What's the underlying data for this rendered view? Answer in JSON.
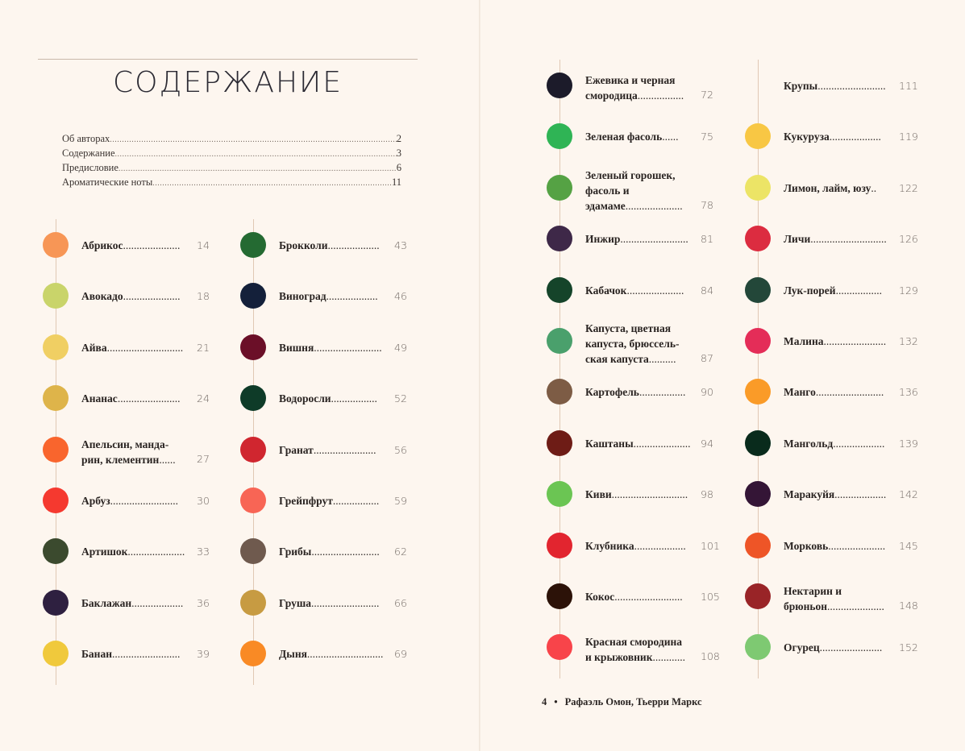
{
  "title": "СОДЕРЖАНИЕ",
  "front_matter": [
    {
      "label": "Об авторах",
      "page": "2"
    },
    {
      "label": "Содержание",
      "page": "3"
    },
    {
      "label": "Предисловие",
      "page": "6"
    },
    {
      "label": "Ароматические ноты",
      "page": "11"
    }
  ],
  "columns": [
    {
      "entries": [
        {
          "name": "Абрикос",
          "page": "14",
          "color": "#f79656"
        },
        {
          "name": "Авокадо",
          "page": "18",
          "color": "#c9d46a"
        },
        {
          "name": "Айва",
          "page": "21",
          "color": "#f0cf63"
        },
        {
          "name": "Ананас",
          "page": "24",
          "color": "#deb44a"
        },
        {
          "name": "Апельсин, манда-рин, клементин",
          "lines": [
            "Апельсин, манда-",
            "рин, клементин"
          ],
          "page": "27",
          "color": "#f9652d"
        },
        {
          "name": "Арбуз",
          "page": "30",
          "color": "#f5392f"
        },
        {
          "name": "Артишок",
          "page": "33",
          "color": "#3b4a2e"
        },
        {
          "name": "Баклажан",
          "page": "36",
          "color": "#2e2040"
        },
        {
          "name": "Банан",
          "page": "39",
          "color": "#f0c93c"
        }
      ]
    },
    {
      "entries": [
        {
          "name": "Брокколи",
          "page": "43",
          "color": "#246a32"
        },
        {
          "name": "Виноград",
          "page": "46",
          "color": "#14203a"
        },
        {
          "name": "Вишня",
          "page": "49",
          "color": "#6b0f28"
        },
        {
          "name": "Водоросли",
          "page": "52",
          "color": "#0e3b28"
        },
        {
          "name": "Гранат",
          "page": "56",
          "color": "#d0262f"
        },
        {
          "name": "Грейпфрут",
          "page": "59",
          "color": "#f86555"
        },
        {
          "name": "Грибы",
          "page": "62",
          "color": "#6f5a4e"
        },
        {
          "name": "Груша",
          "page": "66",
          "color": "#c79b42"
        },
        {
          "name": "Дыня",
          "page": "69",
          "color": "#f98a25"
        }
      ]
    },
    {
      "entries": [
        {
          "name": "Ежевика и черная смородица",
          "lines": [
            "Ежевика и черная",
            "смородица"
          ],
          "page": "72",
          "color": "#1c1b2a"
        },
        {
          "name": "Зеленая фасоль",
          "page": "75",
          "color": "#2fb455"
        },
        {
          "name": "Зеленый горошек, фасоль и эдамаме",
          "lines": [
            "Зеленый горошек,",
            "фасоль и",
            "эдамаме"
          ],
          "page": "78",
          "color": "#55a244"
        },
        {
          "name": "Инжир",
          "page": "81",
          "color": "#3e2848"
        },
        {
          "name": "Кабачок",
          "page": "84",
          "color": "#15442a"
        },
        {
          "name": "Капуста, цветная капуста, брюссель-ская капуста",
          "lines": [
            "Капуста, цветная",
            "капуста, брюссель-",
            "ская капуста"
          ],
          "page": "87",
          "color": "#4aa06c"
        },
        {
          "name": "Картофель",
          "page": "90",
          "color": "#7d5c45"
        },
        {
          "name": "Каштаны",
          "page": "94",
          "color": "#6e1c16"
        },
        {
          "name": "Киви",
          "page": "98",
          "color": "#6bc553"
        },
        {
          "name": "Клубника",
          "page": "101",
          "color": "#e2252f"
        },
        {
          "name": "Кокос",
          "page": "105",
          "color": "#2c1208"
        },
        {
          "name": "Красная смородина и крыжовник",
          "lines": [
            "Красная смородина",
            "и крыжовник"
          ],
          "page": "108",
          "color": "#f8444a"
        }
      ]
    },
    {
      "entries": [
        {
          "name": "Крупы",
          "page": "111",
          "color": ""
        },
        {
          "name": "Кукуруза",
          "page": "119",
          "color": "#f8c744"
        },
        {
          "name": "Лимон, лайм, юзу",
          "page": "122",
          "color": "#ece466"
        },
        {
          "name": "Личи",
          "page": "126",
          "color": "#dc2c40"
        },
        {
          "name": "Лук-порей",
          "page": "129",
          "color": "#234739"
        },
        {
          "name": "Малина",
          "page": "132",
          "color": "#e42d58"
        },
        {
          "name": "Манго",
          "page": "136",
          "color": "#fa9b28"
        },
        {
          "name": "Мангольд",
          "page": "139",
          "color": "#092b1c"
        },
        {
          "name": "Маракуйя",
          "page": "142",
          "color": "#341536"
        },
        {
          "name": "Морковь",
          "page": "145",
          "color": "#ee5527"
        },
        {
          "name": "Нектарин и брюньон",
          "lines": [
            "Нектарин и",
            "брюньон"
          ],
          "page": "148",
          "color": "#992427"
        },
        {
          "name": "Огурец",
          "page": "152",
          "color": "#7ec972"
        }
      ]
    }
  ],
  "footer": {
    "page_number": "4",
    "bullet": "•",
    "authors": "Рафаэль Омон, Тьерри Маркс"
  }
}
